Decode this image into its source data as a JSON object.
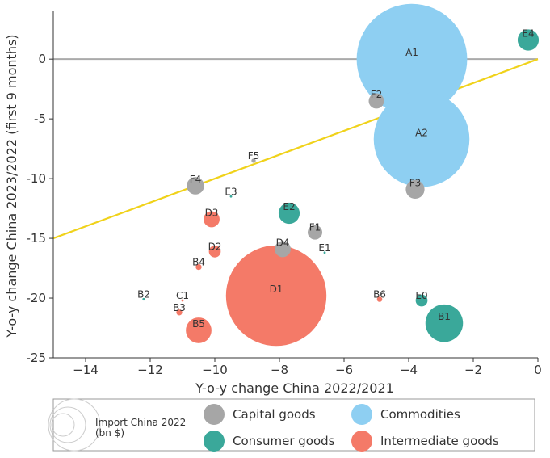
{
  "chart_data": {
    "type": "scatter",
    "xlabel": "Y-o-y change China 2022/2021",
    "ylabel": "Y-o-y change China 2023/2022 (first 9 months)",
    "xlim": [
      -15,
      0
    ],
    "ylim": [
      -25,
      4
    ],
    "xticks": [
      -14,
      -12,
      -10,
      -8,
      -6,
      -4,
      -2,
      0
    ],
    "yticks": [
      0,
      -5,
      -10,
      -15,
      -20,
      -25
    ],
    "xtick_labels": [
      "−14",
      "−12",
      "−10",
      "−8",
      "−6",
      "−4",
      "−2",
      "0"
    ],
    "ytick_labels": [
      "0",
      "-5",
      "-10",
      "-15",
      "-20",
      "-25"
    ],
    "grid": false,
    "reference_line": {
      "type": "horizontal",
      "y": 0,
      "color": "#aaaaaa"
    },
    "trend_line": {
      "x": [
        -15,
        0
      ],
      "y": [
        -15,
        0
      ],
      "color": "#f0d21a"
    },
    "size_legend_label": "Import China 2022\n(bn $)",
    "series": [
      {
        "name": "Capital goods",
        "color": "#a6a6a6",
        "points": [
          {
            "label": "F2",
            "x": -5.0,
            "y": -3.5,
            "size": 10
          },
          {
            "label": "F3",
            "x": -3.8,
            "y": -10.9,
            "size": 15
          },
          {
            "label": "F4",
            "x": -10.6,
            "y": -10.6,
            "size": 13
          },
          {
            "label": "F5",
            "x": -8.8,
            "y": -8.5,
            "size": 0.8
          },
          {
            "label": "F1",
            "x": -6.9,
            "y": -14.5,
            "size": 9
          },
          {
            "label": "D4",
            "x": -7.9,
            "y": -15.9,
            "size": 11
          }
        ]
      },
      {
        "name": "Consumer goods",
        "color": "#3aa89a",
        "points": [
          {
            "label": "E4",
            "x": -0.3,
            "y": 1.6,
            "size": 19
          },
          {
            "label": "E2",
            "x": -7.7,
            "y": -12.9,
            "size": 19
          },
          {
            "label": "E3",
            "x": -9.5,
            "y": -11.5,
            "size": 0.2
          },
          {
            "label": "E1",
            "x": -6.6,
            "y": -16.2,
            "size": 0.1
          },
          {
            "label": "E0",
            "x": -3.6,
            "y": -20.2,
            "size": 6
          },
          {
            "label": "B1",
            "x": -2.9,
            "y": -22.1,
            "size": 60
          },
          {
            "label": "B2",
            "x": -12.2,
            "y": -20.1,
            "size": 0.3
          }
        ]
      },
      {
        "name": "Commodities",
        "color": "#8ecff2",
        "points": [
          {
            "label": "A1",
            "x": -3.9,
            "y": 0.0,
            "size": 520
          },
          {
            "label": "A2",
            "x": -3.6,
            "y": -6.7,
            "size": 390
          }
        ]
      },
      {
        "name": "Intermediate goods",
        "color": "#f47a68",
        "points": [
          {
            "label": "D1",
            "x": -8.1,
            "y": -19.8,
            "size": 430
          },
          {
            "label": "D3",
            "x": -10.1,
            "y": -13.4,
            "size": 11
          },
          {
            "label": "D2",
            "x": -10.0,
            "y": -16.1,
            "size": 6
          },
          {
            "label": "B4",
            "x": -10.5,
            "y": -17.4,
            "size": 1.5
          },
          {
            "label": "C1",
            "x": -11.0,
            "y": -20.2,
            "size": 0.1
          },
          {
            "label": "B3",
            "x": -11.1,
            "y": -21.2,
            "size": 1.5
          },
          {
            "label": "B5",
            "x": -10.5,
            "y": -22.7,
            "size": 28
          },
          {
            "label": "B6",
            "x": -4.9,
            "y": -20.1,
            "size": 1.2
          }
        ]
      }
    ]
  }
}
